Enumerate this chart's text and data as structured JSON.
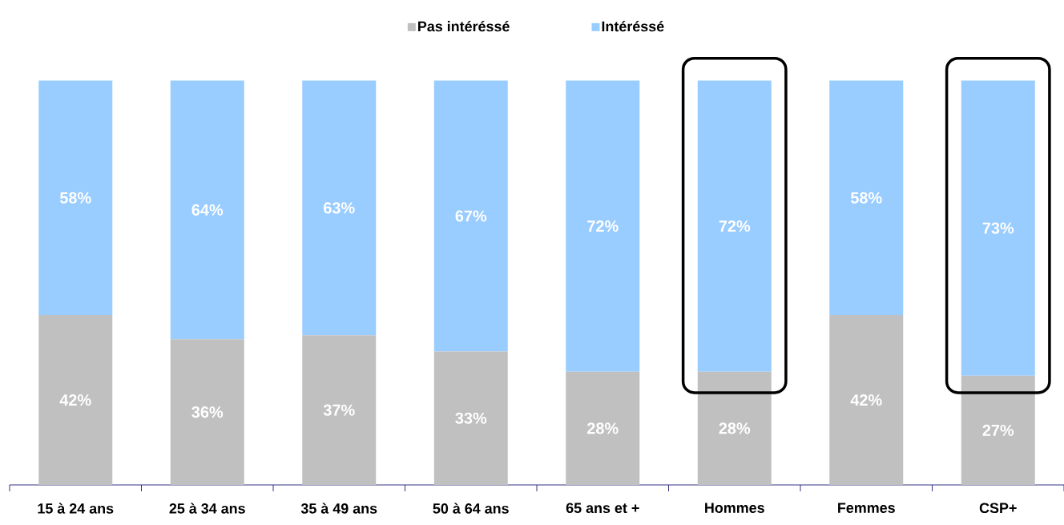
{
  "chart_data": {
    "type": "bar",
    "stacked": true,
    "legend": "top",
    "categories": [
      "15 à 24 ans",
      "25 à 34 ans",
      "35 à 49 ans",
      "50 à 64 ans",
      "65 ans et +",
      "Hommes",
      "Femmes",
      "CSP+"
    ],
    "series": [
      {
        "name": "Pas intéréssé",
        "color": "#c0c0c0",
        "values": [
          42,
          36,
          37,
          33,
          28,
          28,
          42,
          27
        ],
        "value_labels": [
          "42%",
          "36%",
          "37%",
          "33%",
          "28%",
          "28%",
          "42%",
          "27%"
        ]
      },
      {
        "name": "Intéréssé",
        "color": "#99ccff",
        "values": [
          58,
          64,
          63,
          67,
          72,
          72,
          58,
          73
        ],
        "value_labels": [
          "58%",
          "64%",
          "63%",
          "67%",
          "72%",
          "72%",
          "58%",
          "73%"
        ]
      }
    ]
  }
}
